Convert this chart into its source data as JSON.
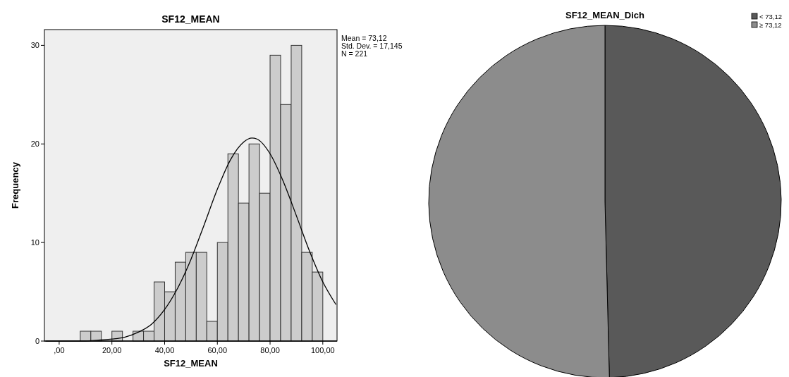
{
  "chart_data": [
    {
      "type": "histogram",
      "title": "SF12_MEAN",
      "xlabel": "SF12_MEAN",
      "ylabel": "Frequency",
      "color": "#cccccc",
      "bins": [
        8,
        12,
        16,
        20,
        24,
        28,
        32,
        36,
        40,
        44,
        48,
        52,
        56,
        60,
        64,
        68,
        72,
        76,
        80,
        84,
        88,
        92,
        96,
        100
      ],
      "values": [
        1,
        1,
        0,
        1,
        0,
        1,
        1,
        6,
        5,
        8,
        9,
        9,
        2,
        10,
        19,
        14,
        20,
        15,
        29,
        24,
        30,
        9,
        7
      ],
      "series": [
        {
          "type": "line",
          "color": "#000000",
          "x": [
            -5,
            0,
            5,
            10,
            15,
            20,
            25,
            30,
            35,
            40,
            45,
            50,
            55,
            60,
            65,
            70,
            73.12,
            75,
            80,
            85,
            90,
            95,
            100,
            105
          ],
          "values": [
            0,
            0,
            0,
            0,
            0.1,
            0.2,
            0.4,
            0.9,
            1.7,
            3.2,
            5.4,
            8.3,
            11.8,
            15.4,
            18.4,
            20.2,
            20.6,
            20.5,
            19,
            16.2,
            12.7,
            9.1,
            6,
            3.7
          ]
        }
      ],
      "xlim": [
        -5.6,
        105.4
      ],
      "xticks": [
        {
          "value": 0,
          "label": ",00"
        },
        {
          "value": 20,
          "label": "20,00"
        },
        {
          "value": 40,
          "label": "40,00"
        },
        {
          "value": 60,
          "label": "60,00"
        },
        {
          "value": 80,
          "label": "80,00"
        },
        {
          "value": 100,
          "label": "100,00"
        }
      ],
      "ylim": [
        0,
        31.6
      ],
      "yticks": [
        0,
        10,
        20,
        30
      ],
      "annotations": [
        "Mean = 73,12",
        "Std. Dev. = 17,145",
        "N = 221"
      ]
    },
    {
      "type": "pie",
      "title": "SF12_MEAN_Dich",
      "categories": [
        "< 73,12",
        "≥ 73,12"
      ],
      "values": [
        49.6,
        50.4
      ],
      "colors": [
        "#595959",
        "#8c8c8c"
      ],
      "legend": "top right"
    }
  ]
}
